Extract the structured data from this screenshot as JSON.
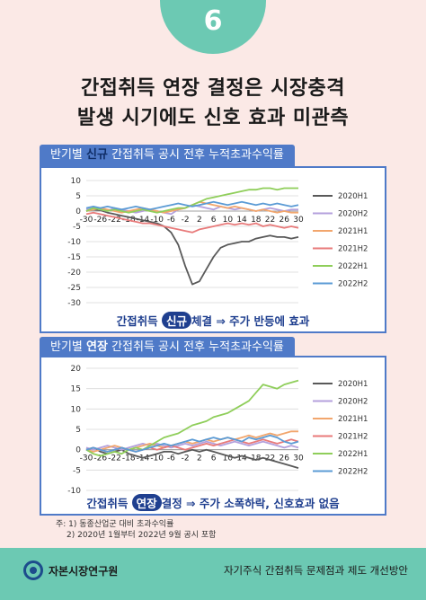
{
  "badge": {
    "number": "6"
  },
  "title": {
    "line1": "간접취득 연장 결정은 시장충격",
    "line2": "발생 시기에도 신호 효과 미관측"
  },
  "colors": {
    "accent": "#6cc9b3",
    "panel_blue": "#4f7ac8",
    "caption_blue": "#1f3f8f"
  },
  "chart1": {
    "tab": {
      "pre": "반기별 ",
      "hl": "신규",
      "post": " 간접취득 공시 전후 누적초과수익률"
    },
    "caption": {
      "pre": "간접취득 ",
      "hl": "신규",
      "post": "체결 ⇒ 주가 반등에 효과"
    }
  },
  "chart2": {
    "tab": {
      "pre": "반기별 ",
      "hl": "연장",
      "post": " 간접취득 공시 전후 누적초과수익률"
    },
    "caption": {
      "pre": "간접취득 ",
      "hl": "연장",
      "post": "결정 ⇒ 주가 소폭하락, 신호효과 없음"
    }
  },
  "notes": {
    "line1": "주: 1) 동종산업군 대비 초과수익률",
    "line2": "2) 2020년 1월부터 2022년 9월 공시 포함"
  },
  "footer": {
    "org": "자본시장연구원",
    "title": "자기주식 간접취득 문제점과 제도 개선방안"
  },
  "chart_data": [
    {
      "type": "line",
      "title": "반기별 신규 간접취득 공시 전후 누적초과수익률",
      "x": [
        -30,
        -28,
        -26,
        -24,
        -22,
        -20,
        -18,
        -16,
        -14,
        -12,
        -10,
        -8,
        -6,
        -4,
        -2,
        0,
        2,
        4,
        6,
        8,
        10,
        12,
        14,
        16,
        18,
        20,
        22,
        24,
        26,
        28,
        30
      ],
      "xticks": [
        -30,
        -26,
        -22,
        -18,
        -14,
        -10,
        -6,
        -2,
        2,
        6,
        10,
        14,
        18,
        22,
        26,
        30
      ],
      "ylim": [
        -30,
        10
      ],
      "yticks": [
        10,
        5,
        0,
        -5,
        -10,
        -15,
        -20,
        -25,
        -30
      ],
      "grid": "horizontal",
      "legend": "right",
      "series": [
        {
          "name": "2020H1",
          "color": "#595959",
          "values": [
            0,
            0.5,
            0.3,
            -0.5,
            -1,
            -1.5,
            -2,
            -2.5,
            -3,
            -3.5,
            -4,
            -5,
            -7,
            -11,
            -18,
            -24,
            -23,
            -19,
            -15,
            -12,
            -11,
            -10.5,
            -10,
            -10,
            -9,
            -8.5,
            -8,
            -8.5,
            -8.5,
            -9,
            -8.5
          ]
        },
        {
          "name": "2020H2",
          "color": "#b4a0dc",
          "values": [
            0.5,
            1,
            0.5,
            0,
            1,
            0.5,
            0,
            -0.5,
            0,
            0.5,
            0,
            -0.5,
            -1,
            0.5,
            1,
            2,
            1.5,
            1,
            0.5,
            1.5,
            1,
            0.5,
            1,
            0.5,
            0,
            0.5,
            1,
            0.5,
            0,
            0.5,
            0.5
          ]
        },
        {
          "name": "2021H1",
          "color": "#f2a66d",
          "values": [
            0,
            0.5,
            1,
            0.5,
            0,
            -0.5,
            0,
            0.5,
            1,
            0.5,
            0,
            -0.5,
            0,
            0.5,
            1,
            2,
            3,
            2.5,
            2,
            1.5,
            1,
            1.5,
            1,
            0.5,
            0,
            0.5,
            0,
            -0.5,
            0,
            -0.5,
            -0.5
          ]
        },
        {
          "name": "2021H2",
          "color": "#e87a7a",
          "values": [
            -1,
            -0.5,
            -1,
            -1.5,
            -2,
            -2.5,
            -3,
            -3.5,
            -4,
            -4,
            -4.5,
            -5,
            -5.5,
            -6,
            -6.5,
            -7,
            -6,
            -5.5,
            -5,
            -4.5,
            -4,
            -4.5,
            -4,
            -4.5,
            -4,
            -5,
            -4.5,
            -5,
            -5.5,
            -5,
            -5.5
          ]
        },
        {
          "name": "2022H1",
          "color": "#8fce5a",
          "values": [
            0,
            1,
            0.5,
            0,
            0.5,
            0,
            -0.5,
            0,
            0.5,
            0,
            -0.5,
            0,
            0.5,
            1,
            1,
            2,
            3,
            4,
            4.5,
            5,
            5.5,
            6,
            6.5,
            7,
            7,
            7.5,
            7.5,
            7,
            7.5,
            7.5,
            7.5
          ]
        },
        {
          "name": "2022H2",
          "color": "#5b9bd5",
          "values": [
            1,
            1.5,
            1,
            1.5,
            1,
            0.5,
            1,
            1.5,
            1,
            0.5,
            1,
            1.5,
            2,
            2.5,
            2,
            1.5,
            2,
            2.5,
            3,
            2.5,
            2,
            2.5,
            3,
            2.5,
            2,
            2.5,
            2,
            2.5,
            2,
            1.5,
            2
          ]
        }
      ]
    },
    {
      "type": "line",
      "title": "반기별 연장 간접취득 공시 전후 누적초과수익률",
      "x": [
        -30,
        -28,
        -26,
        -24,
        -22,
        -20,
        -18,
        -16,
        -14,
        -12,
        -10,
        -8,
        -6,
        -4,
        -2,
        0,
        2,
        4,
        6,
        8,
        10,
        12,
        14,
        16,
        18,
        20,
        22,
        24,
        26,
        28,
        30
      ],
      "xticks": [
        -30,
        -26,
        -22,
        -18,
        -14,
        -10,
        -6,
        -2,
        2,
        6,
        10,
        14,
        18,
        22,
        26,
        30
      ],
      "ylim": [
        -10,
        20
      ],
      "yticks": [
        20,
        15,
        10,
        5,
        0,
        -5,
        -10
      ],
      "grid": "horizontal",
      "legend": "right",
      "series": [
        {
          "name": "2020H1",
          "color": "#595959",
          "values": [
            0,
            0.5,
            -0.5,
            -1,
            -0.5,
            0,
            -1,
            -1.5,
            -2,
            -1.5,
            -1,
            -0.5,
            -0.5,
            -1,
            -0.5,
            0,
            -0.5,
            0,
            -0.5,
            -1,
            -1.5,
            -2,
            -1.5,
            -2,
            -2.5,
            -2,
            -2.5,
            -3,
            -3.5,
            -4,
            -4.5
          ]
        },
        {
          "name": "2020H2",
          "color": "#b4a0dc",
          "values": [
            0.5,
            0,
            0.5,
            1,
            0.5,
            0,
            0.5,
            1,
            1.5,
            1,
            1.5,
            1,
            0.5,
            1,
            1.5,
            1,
            1.5,
            2,
            1.5,
            1,
            1.5,
            2,
            1.5,
            1,
            1.5,
            2,
            1.5,
            1,
            0.5,
            1,
            0.5
          ]
        },
        {
          "name": "2021H1",
          "color": "#f2a66d",
          "values": [
            0,
            -0.5,
            0,
            0.5,
            1,
            0.5,
            0,
            0.5,
            1,
            1.5,
            1,
            0.5,
            1,
            1.5,
            2,
            1.5,
            2,
            2.5,
            2,
            2.5,
            3,
            2.5,
            3,
            3.5,
            3,
            3.5,
            4,
            3.5,
            4,
            4.5,
            4.5
          ]
        },
        {
          "name": "2021H2",
          "color": "#e87a7a",
          "values": [
            0,
            0.5,
            0,
            -0.5,
            0,
            0.5,
            0,
            -0.5,
            0,
            0.5,
            0,
            0.5,
            1,
            0.5,
            0,
            0.5,
            1,
            1.5,
            1,
            1.5,
            2,
            2.5,
            2,
            1.5,
            2,
            2.5,
            2,
            1.5,
            2,
            2.5,
            2
          ]
        },
        {
          "name": "2022H1",
          "color": "#8fce5a",
          "values": [
            0,
            -1,
            -1.5,
            -1,
            -0.5,
            -1,
            0,
            0.5,
            0,
            1,
            2,
            3,
            3.5,
            4,
            5,
            6,
            6.5,
            7,
            8,
            8.5,
            9,
            10,
            11,
            12,
            14,
            16,
            15.5,
            15,
            16,
            16.5,
            17
          ]
        },
        {
          "name": "2022H2",
          "color": "#5b9bd5",
          "values": [
            0,
            0.5,
            0,
            -0.5,
            0,
            0.5,
            0,
            -0.5,
            0,
            0.5,
            1,
            1.5,
            1,
            1.5,
            2,
            2.5,
            2,
            2.5,
            3,
            2.5,
            3,
            2.5,
            2,
            3,
            2.5,
            3,
            3.5,
            3,
            2,
            1.5,
            2
          ]
        }
      ]
    }
  ]
}
